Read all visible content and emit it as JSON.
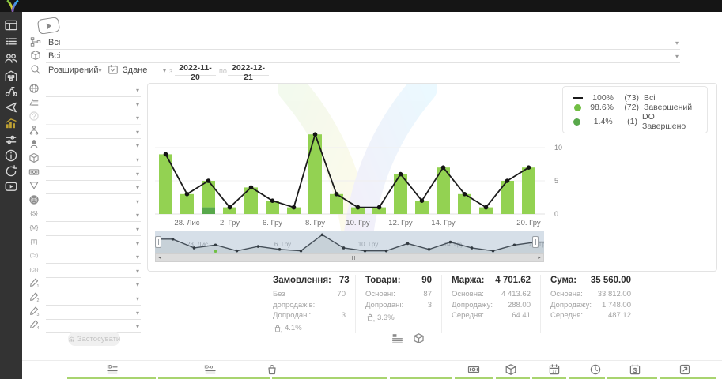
{
  "sidebar": {
    "items": [
      {
        "icon": "dashboard-icon",
        "active": false
      },
      {
        "icon": "orders-list-icon",
        "active": false
      },
      {
        "icon": "users-icon",
        "active": false
      },
      {
        "icon": "warehouse-icon",
        "active": false
      },
      {
        "icon": "delivery-icon",
        "active": false
      },
      {
        "icon": "announce-icon",
        "active": false
      },
      {
        "icon": "analytics-icon",
        "active": true
      },
      {
        "icon": "sliders-icon",
        "active": false
      },
      {
        "icon": "info-icon",
        "active": false
      },
      {
        "icon": "sync-icon",
        "active": false
      },
      {
        "icon": "video-icon",
        "active": false
      }
    ]
  },
  "filters": {
    "source_value": "Всі",
    "product_value": "Всі",
    "mode_value": "Розширений",
    "date_type_value": "Здане",
    "from_label": "з",
    "date_from": "2022-11-20",
    "to_label": "по",
    "date_to": "2022-12-21",
    "apply_label": "Застосувати",
    "side_rows": [
      {
        "icon": "globe-icon"
      },
      {
        "icon": "layers-icon"
      },
      {
        "icon": "question-icon",
        "disabled": true
      },
      {
        "icon": "hierarchy-icon"
      },
      {
        "icon": "person-icon"
      },
      {
        "icon": "package-icon"
      },
      {
        "icon": "banknote-icon"
      },
      {
        "icon": "funnel-icon"
      },
      {
        "icon": "globe-grid-icon"
      },
      {
        "icon": "token-icon",
        "glyph": "{S}"
      },
      {
        "icon": "token-icon",
        "glyph": "{M}"
      },
      {
        "icon": "token-icon",
        "glyph": "{T}"
      },
      {
        "icon": "token-icon",
        "glyph": "{Ст}"
      },
      {
        "icon": "token-icon",
        "glyph": "{Св}"
      },
      {
        "icon": "pencil-icon",
        "glyph": "1"
      },
      {
        "icon": "pencil-icon",
        "glyph": "2"
      },
      {
        "icon": "pencil-icon",
        "glyph": "3"
      },
      {
        "icon": "pencil-icon",
        "glyph": "4"
      }
    ]
  },
  "chart_data": {
    "type": "bar",
    "x_labels": [
      "",
      "28. Лис",
      "",
      "2. Гру",
      "",
      "6. Гру",
      "",
      "8. Гру",
      "",
      "10. Гру",
      "",
      "12. Гру",
      "",
      "14. Гру",
      "",
      "",
      "",
      "20. Гру"
    ],
    "yticks": [
      0,
      5,
      10
    ],
    "ylim": [
      0,
      12.5
    ],
    "grid": true,
    "legend_position": "top-right",
    "series": [
      {
        "name": "Всі",
        "type": "line",
        "color": "#1b1b1b",
        "values": [
          9,
          3,
          5,
          1,
          4,
          2,
          1,
          12,
          3,
          1,
          1,
          6,
          2,
          7,
          3,
          1,
          5,
          7
        ]
      },
      {
        "name": "Завершений",
        "type": "bar",
        "color": "#93d252",
        "values": [
          9,
          3,
          4,
          1,
          4,
          2,
          1,
          12,
          3,
          1,
          1,
          6,
          2,
          7,
          3,
          1,
          5,
          7
        ]
      },
      {
        "name": "DO Завершено",
        "type": "bar",
        "color": "#58a84b",
        "values": [
          0,
          0,
          1,
          0,
          0,
          0,
          0,
          0,
          0,
          0,
          0,
          0,
          0,
          0,
          0,
          0,
          0,
          0
        ]
      }
    ]
  },
  "legend": {
    "items": [
      {
        "swatch": "line",
        "color": "#1b1b1b",
        "pct": "100%",
        "count": "(73)",
        "label": "Всі"
      },
      {
        "swatch": "dot",
        "color": "#72bf44",
        "pct": "98.6%",
        "count": "(72)",
        "label": "Завершений"
      },
      {
        "swatch": "dot",
        "color": "#58a84b",
        "pct": "1.4%",
        "count": "(1)",
        "label": "DO Завершено"
      }
    ]
  },
  "stats": {
    "columns": [
      {
        "title": "Замовлення:",
        "value": "73",
        "rows": [
          {
            "label": "Без допродажів:",
            "value": "70"
          },
          {
            "label": "Допродані:",
            "value": "3"
          }
        ],
        "badge": {
          "icon": "bag-percent-icon",
          "value": "4.1%"
        }
      },
      {
        "title": "Товари:",
        "value": "90",
        "rows": [
          {
            "label": "Основні:",
            "value": "87"
          },
          {
            "label": "Допродані:",
            "value": "3"
          }
        ],
        "badge": {
          "icon": "bag-percent-icon",
          "value": "3.3%"
        }
      },
      {
        "title": "Маржа:",
        "value": "4 701.62",
        "rows": [
          {
            "label": "Основна:",
            "value": "4 413.62"
          },
          {
            "label": "Допродажу:",
            "value": "288.00"
          },
          {
            "label": "Середня:",
            "value": "64.41"
          }
        ]
      },
      {
        "title": "Сума:",
        "value": "35 560.00",
        "rows": [
          {
            "label": "Основна:",
            "value": "33 812.00"
          },
          {
            "label": "Допродажу:",
            "value": "1 748.00"
          },
          {
            "label": "Середня:",
            "value": "487.12"
          }
        ]
      }
    ]
  },
  "toggles": [
    {
      "icon": "list-view-icon"
    },
    {
      "icon": "package-view-icon"
    }
  ],
  "footer": {
    "cells": [
      {
        "icon": "id-lines-icon"
      },
      {
        "icon": "id-o-icon"
      },
      {
        "icon": "bag-icon"
      },
      {
        "icon": "banknote-cell-icon"
      },
      {
        "icon": "package-cell-icon"
      },
      {
        "icon": "calendar-icon"
      },
      {
        "icon": "clock-icon"
      },
      {
        "icon": "calendar-clock-icon"
      },
      {
        "icon": "calendar-export-icon"
      }
    ]
  }
}
